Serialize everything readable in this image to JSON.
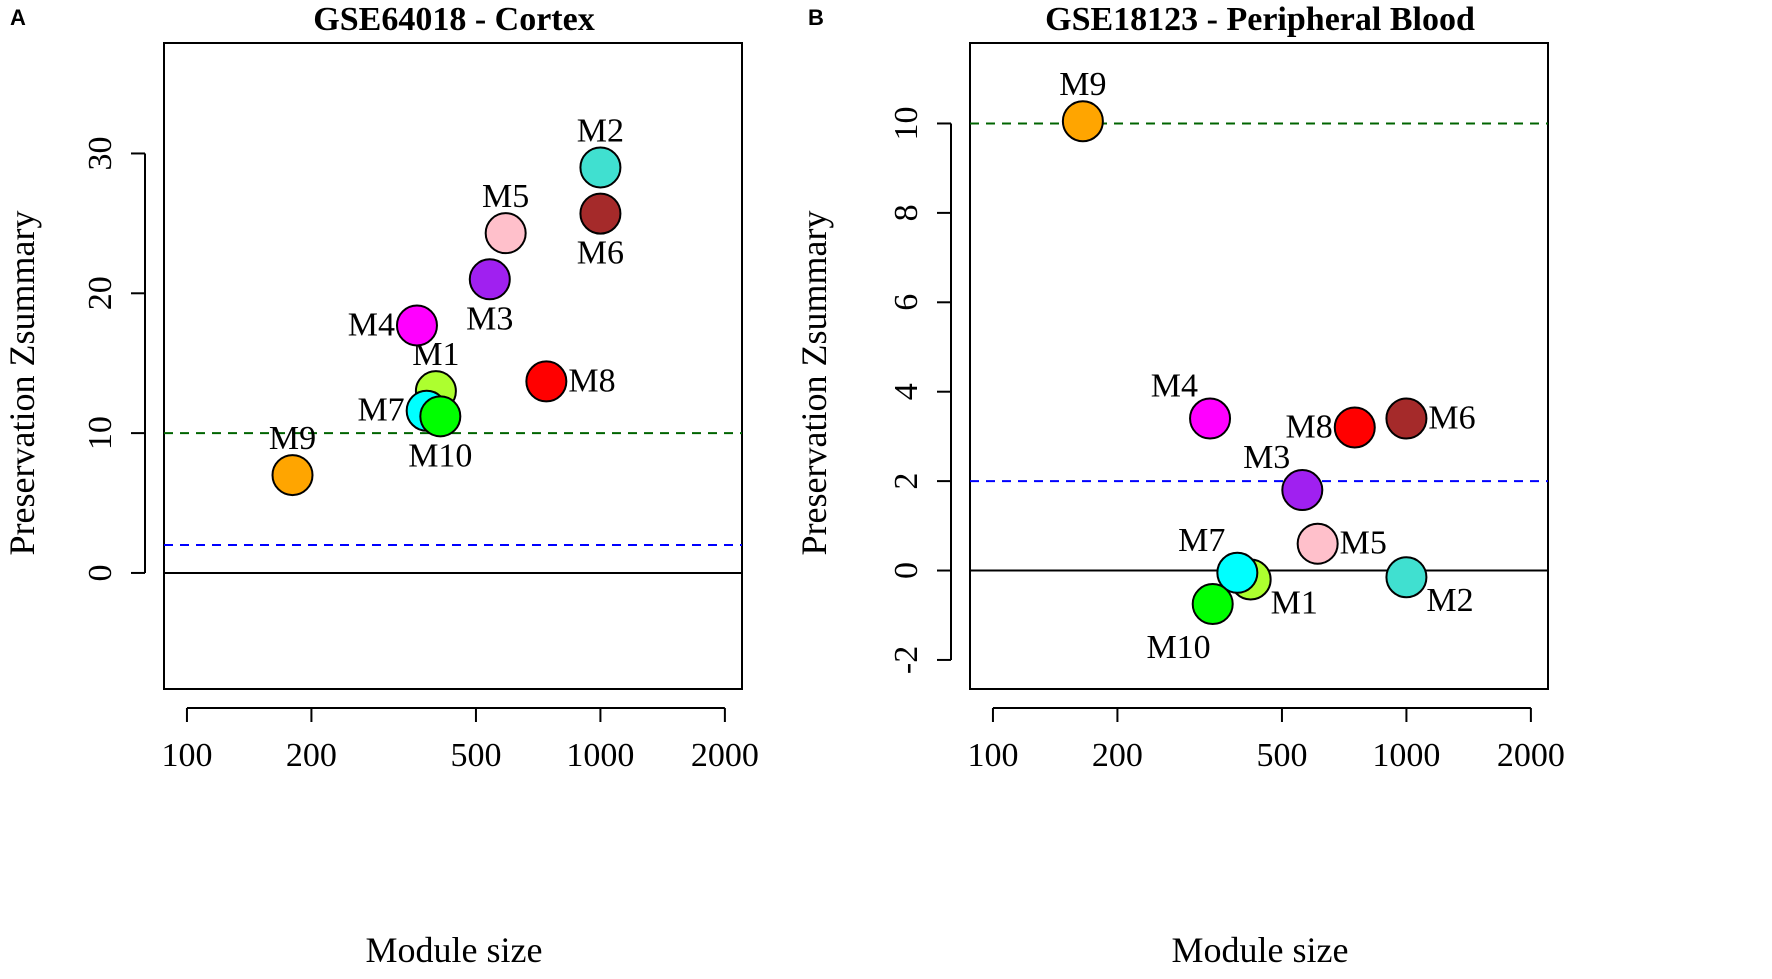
{
  "chart_data": [
    {
      "panel_label": "A",
      "type": "scatter",
      "title": "GSE64018 - Cortex",
      "xlabel": "Module size",
      "ylabel": "Preservation Zsummary",
      "xscale": "log",
      "xlim": [
        88,
        2200
      ],
      "ylim": [
        -8.3,
        37.9
      ],
      "xticks": [
        100,
        200,
        500,
        1000,
        2000
      ],
      "xtick_labels": [
        "100",
        "200",
        "500",
        "1000",
        "2000"
      ],
      "yticks": [
        0,
        10,
        20,
        30
      ],
      "ytick_labels": [
        "0",
        "10",
        "20",
        "30"
      ],
      "reference_lines": [
        {
          "y": 0,
          "style": "solid",
          "color": "#000000"
        },
        {
          "y": 2,
          "style": "dashed",
          "color": "#0000ff"
        },
        {
          "y": 10,
          "style": "dashed",
          "color": "#006400"
        }
      ],
      "points": [
        {
          "name": "M1",
          "x": 400,
          "y": 13,
          "color": "#adff2f",
          "label_pos": "above"
        },
        {
          "name": "M2",
          "x": 1000,
          "y": 29,
          "color": "#40e0d0",
          "label_pos": "above"
        },
        {
          "name": "M3",
          "x": 540,
          "y": 21,
          "color": "#a020f0",
          "label_pos": "below"
        },
        {
          "name": "M4",
          "x": 360,
          "y": 17.7,
          "color": "#ff00ff",
          "label_pos": "left"
        },
        {
          "name": "M5",
          "x": 590,
          "y": 24.3,
          "color": "#ffc0cb",
          "label_pos": "above"
        },
        {
          "name": "M6",
          "x": 1000,
          "y": 25.7,
          "color": "#a52a2a",
          "label_pos": "below"
        },
        {
          "name": "M7",
          "x": 380,
          "y": 11.6,
          "color": "#00ffff",
          "label_pos": "left"
        },
        {
          "name": "M8",
          "x": 740,
          "y": 13.7,
          "color": "#ff0000",
          "label_pos": "right"
        },
        {
          "name": "M9",
          "x": 180,
          "y": 7,
          "color": "#ffa500",
          "label_pos": "above"
        },
        {
          "name": "M10",
          "x": 410,
          "y": 11.2,
          "color": "#00ff00",
          "label_pos": "below"
        }
      ]
    },
    {
      "panel_label": "B",
      "type": "scatter",
      "title": "GSE18123 - Peripheral Blood",
      "xlabel": "Module size",
      "ylabel": "Preservation Zsummary",
      "xscale": "log",
      "xlim": [
        88,
        2200
      ],
      "ylim": [
        -2.65,
        11.8
      ],
      "xticks": [
        100,
        200,
        500,
        1000,
        2000
      ],
      "xtick_labels": [
        "100",
        "200",
        "500",
        "1000",
        "2000"
      ],
      "yticks": [
        -2,
        0,
        2,
        4,
        6,
        8,
        10
      ],
      "ytick_labels": [
        "-2",
        "0",
        "2",
        "4",
        "6",
        "8",
        "10"
      ],
      "reference_lines": [
        {
          "y": 0,
          "style": "solid",
          "color": "#000000"
        },
        {
          "y": 2,
          "style": "dashed",
          "color": "#0000ff"
        },
        {
          "y": 10,
          "style": "dashed",
          "color": "#006400"
        }
      ],
      "points": [
        {
          "name": "M1",
          "x": 420,
          "y": -0.2,
          "color": "#adff2f",
          "label_pos": "right-below"
        },
        {
          "name": "M2",
          "x": 1000,
          "y": -0.15,
          "color": "#40e0d0",
          "label_pos": "right-below"
        },
        {
          "name": "M3",
          "x": 560,
          "y": 1.8,
          "color": "#a020f0",
          "label_pos": "above-left"
        },
        {
          "name": "M4",
          "x": 335,
          "y": 3.4,
          "color": "#ff00ff",
          "label_pos": "above-left"
        },
        {
          "name": "M5",
          "x": 610,
          "y": 0.6,
          "color": "#ffc0cb",
          "label_pos": "right"
        },
        {
          "name": "M6",
          "x": 1000,
          "y": 3.4,
          "color": "#a52a2a",
          "label_pos": "right"
        },
        {
          "name": "M7",
          "x": 390,
          "y": -0.05,
          "color": "#00ffff",
          "label_pos": "above-left"
        },
        {
          "name": "M8",
          "x": 750,
          "y": 3.2,
          "color": "#ff0000",
          "label_pos": "left"
        },
        {
          "name": "M9",
          "x": 165,
          "y": 10.05,
          "color": "#ffa500",
          "label_pos": "above"
        },
        {
          "name": "M10",
          "x": 340,
          "y": -0.75,
          "color": "#00ff00",
          "label_pos": "below-left"
        }
      ]
    }
  ]
}
